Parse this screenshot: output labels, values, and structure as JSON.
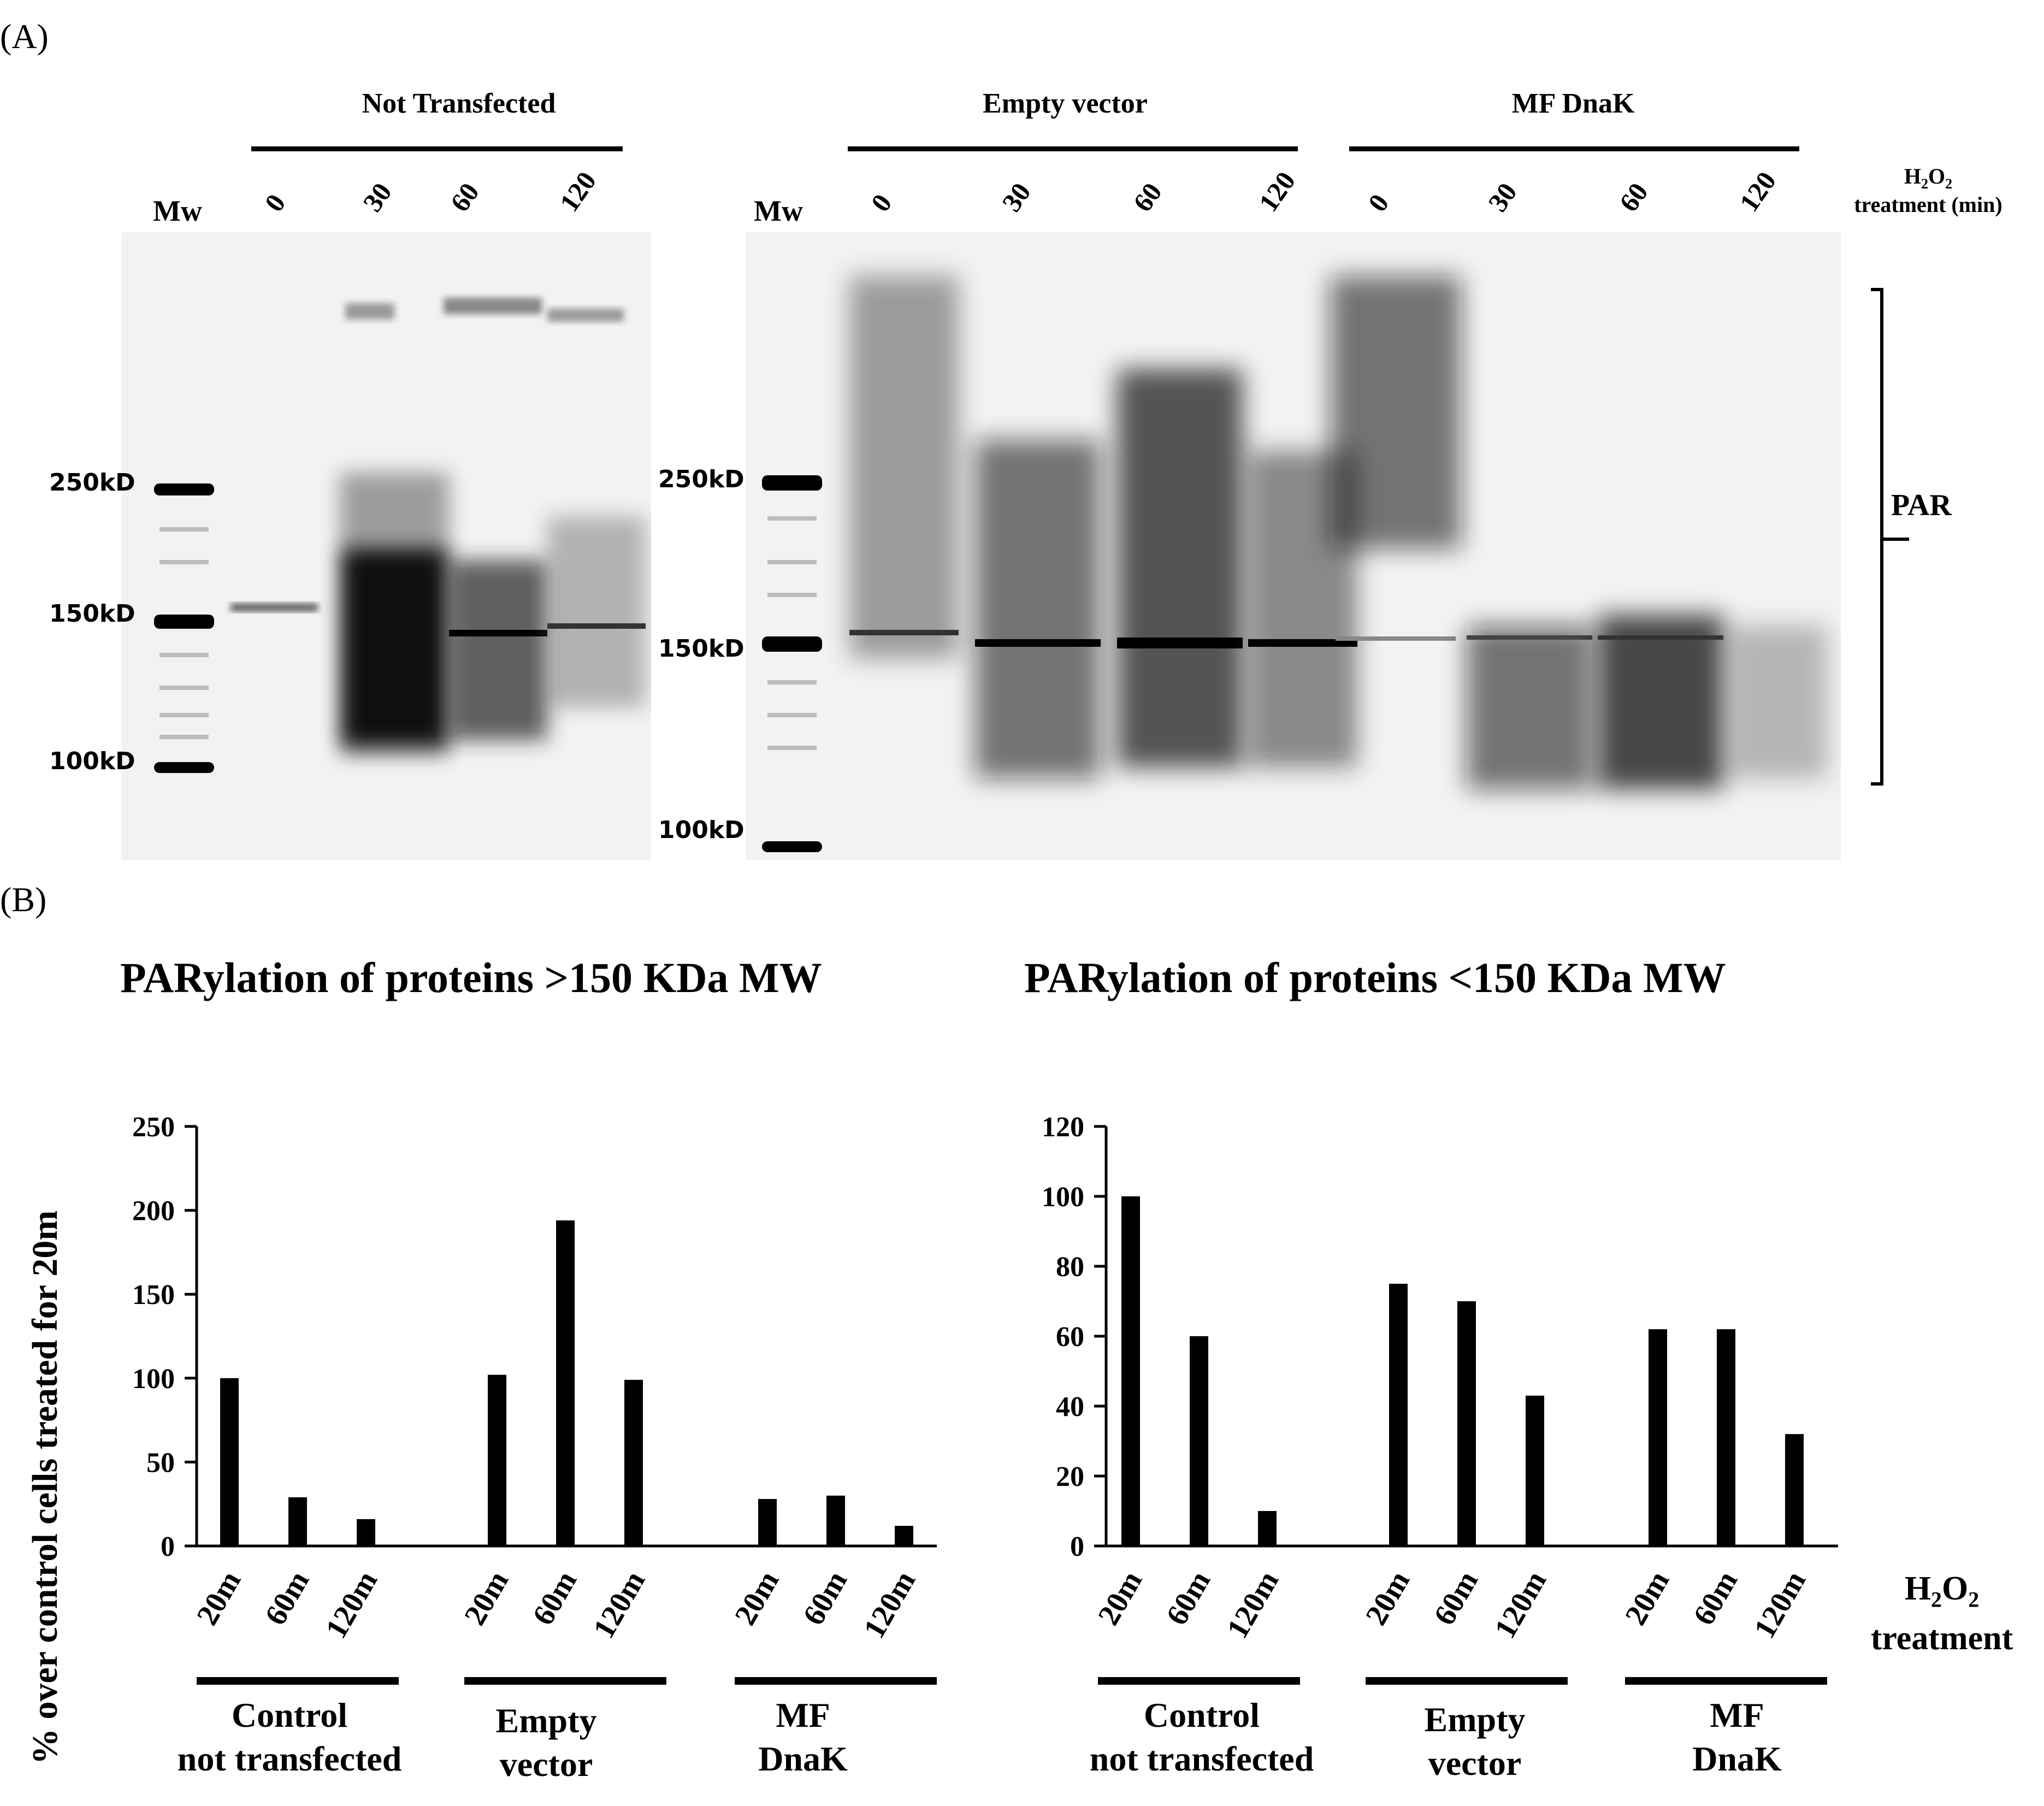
{
  "panel_a": {
    "label": "(A)",
    "groups": [
      "Not Transfected",
      "Empty vector",
      "MF DnaK"
    ],
    "mw_label": "Mw",
    "lanes_left": [
      "0",
      "30",
      "60",
      "120"
    ],
    "lanes_right": [
      "0",
      "30",
      "60",
      "120",
      "0",
      "30",
      "60",
      "120"
    ],
    "treatment_line1": "H",
    "treatment_sub2": "2",
    "treatment_o": "O",
    "treatment_line1b": "2",
    "treatment_line2": "treatment (min)",
    "markers_left": [
      "250kD",
      "150kD",
      "100kD"
    ],
    "markers_right": [
      "250kD",
      "150kD",
      "100kD"
    ],
    "bracket_label": "PAR"
  },
  "panel_b": {
    "label": "(B)",
    "y_axis_label": "% over control cells treated for 20m",
    "treatment_label_h": "H",
    "treatment_label_sub": "2",
    "treatment_label_o": "O",
    "treatment_label_sub2": "2",
    "treatment_label_2": "treatment",
    "group_labels": [
      [
        "Control",
        "not transfected"
      ],
      [
        "Empty",
        "vector"
      ],
      [
        "MF",
        "DnaK"
      ]
    ]
  },
  "chart_data": [
    {
      "type": "bar",
      "title": "PARylation of proteins >150 KDa MW",
      "ylabel": "% over control cells treated for 20m",
      "xlabel": "H2O2 treatment",
      "ylim": [
        0,
        250
      ],
      "yticks": [
        0,
        50,
        100,
        150,
        200,
        250
      ],
      "groups": [
        "Control not transfected",
        "Empty vector",
        "MF DnaK"
      ],
      "categories": [
        "20m",
        "60m",
        "120m"
      ],
      "series": [
        {
          "name": "Control not transfected",
          "values": [
            100,
            29,
            16
          ]
        },
        {
          "name": "Empty vector",
          "values": [
            102,
            194,
            99
          ]
        },
        {
          "name": "MF DnaK",
          "values": [
            28,
            30,
            12
          ]
        }
      ]
    },
    {
      "type": "bar",
      "title": "PARylation of proteins <150 KDa MW",
      "ylabel": "% over control cells treated for 20m",
      "xlabel": "H2O2 treatment",
      "ylim": [
        0,
        120
      ],
      "yticks": [
        0,
        20,
        40,
        60,
        80,
        100,
        120
      ],
      "groups": [
        "Control not transfected",
        "Empty vector",
        "MF DnaK"
      ],
      "categories": [
        "20m",
        "60m",
        "120m"
      ],
      "series": [
        {
          "name": "Control not transfected",
          "values": [
            100,
            60,
            10
          ]
        },
        {
          "name": "Empty vector",
          "values": [
            75,
            70,
            43
          ]
        },
        {
          "name": "MF DnaK",
          "values": [
            62,
            62,
            32
          ]
        }
      ]
    }
  ]
}
